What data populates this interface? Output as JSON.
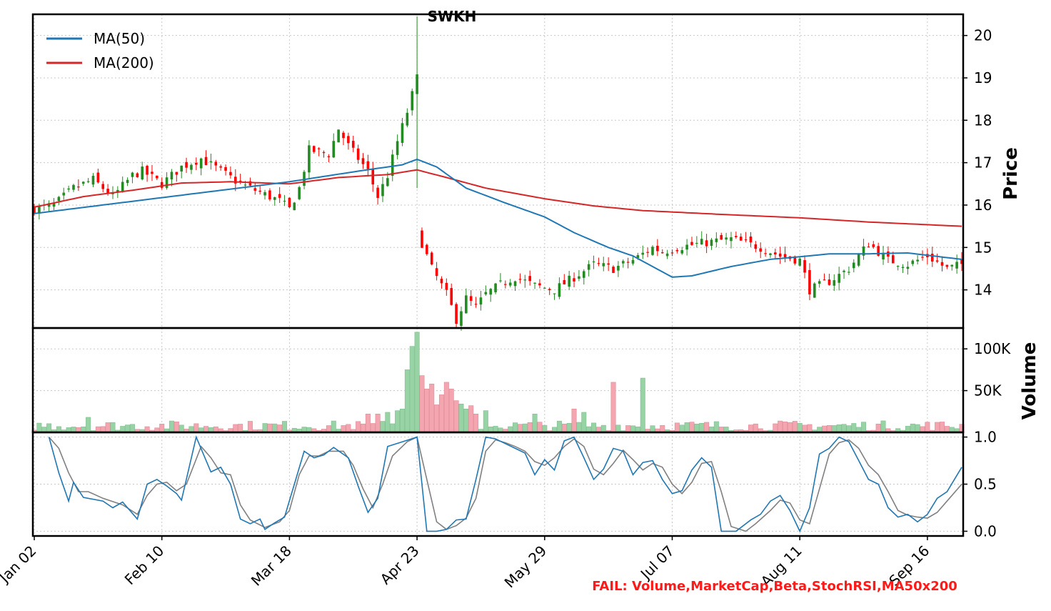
{
  "chart_data": {
    "type": "candlestick",
    "title": "SWKH",
    "x_tick_labels": [
      "Jan 02",
      "Feb 10",
      "Mar 18",
      "Apr 23",
      "May 29",
      "Jul 07",
      "Aug 11",
      "Sep 16"
    ],
    "x_tick_index": [
      0,
      26,
      52,
      78,
      104,
      130,
      156,
      182
    ],
    "n_days": 190,
    "price_panel": {
      "ylabel": "Price",
      "ylim": [
        13.1,
        20.5
      ],
      "y_ticks": [
        14,
        15,
        16,
        17,
        18,
        19,
        20
      ],
      "legend": [
        {
          "label": "MA(50)",
          "color": "#1f77b4"
        },
        {
          "label": "MA(200)",
          "color": "#d62728"
        }
      ],
      "close_anchors": [
        [
          0,
          15.9
        ],
        [
          4,
          16.0
        ],
        [
          8,
          16.4
        ],
        [
          12,
          16.6
        ],
        [
          16,
          16.2
        ],
        [
          20,
          16.7
        ],
        [
          22,
          16.8
        ],
        [
          26,
          16.5
        ],
        [
          30,
          16.9
        ],
        [
          34,
          17.1
        ],
        [
          38,
          16.8
        ],
        [
          42,
          16.5
        ],
        [
          46,
          16.3
        ],
        [
          50,
          16.1
        ],
        [
          52,
          15.9
        ],
        [
          54,
          16.4
        ],
        [
          56,
          17.3
        ],
        [
          60,
          17.2
        ],
        [
          62,
          17.8
        ],
        [
          64,
          17.4
        ],
        [
          68,
          16.8
        ],
        [
          70,
          16.2
        ],
        [
          72,
          16.7
        ],
        [
          74,
          17.5
        ],
        [
          76,
          18.2
        ],
        [
          78,
          19.0
        ],
        [
          79,
          15.1
        ],
        [
          81,
          14.5
        ],
        [
          84,
          13.9
        ],
        [
          86,
          13.3
        ],
        [
          88,
          13.8
        ],
        [
          90,
          13.6
        ],
        [
          92,
          13.9
        ],
        [
          96,
          14.2
        ],
        [
          98,
          14.3
        ],
        [
          102,
          14.1
        ],
        [
          106,
          14.0
        ],
        [
          110,
          14.3
        ],
        [
          114,
          14.6
        ],
        [
          118,
          14.5
        ],
        [
          122,
          14.7
        ],
        [
          126,
          15.0
        ],
        [
          128,
          14.9
        ],
        [
          131,
          15.0
        ],
        [
          136,
          15.1
        ],
        [
          142,
          15.2
        ],
        [
          148,
          15.0
        ],
        [
          152,
          14.8
        ],
        [
          156,
          14.7
        ],
        [
          158,
          14.0
        ],
        [
          162,
          14.2
        ],
        [
          166,
          14.5
        ],
        [
          170,
          15.1
        ],
        [
          174,
          14.7
        ],
        [
          178,
          14.6
        ],
        [
          182,
          14.8
        ],
        [
          186,
          14.5
        ],
        [
          189,
          14.6
        ]
      ],
      "ma50": [
        [
          0,
          15.8
        ],
        [
          52,
          16.55
        ],
        [
          66,
          16.8
        ],
        [
          75,
          16.95
        ],
        [
          78,
          17.08
        ],
        [
          82,
          16.9
        ],
        [
          88,
          16.4
        ],
        [
          96,
          16.05
        ],
        [
          104,
          15.72
        ],
        [
          110,
          15.35
        ],
        [
          117,
          15.0
        ],
        [
          122,
          14.8
        ],
        [
          130,
          14.3
        ],
        [
          134,
          14.33
        ],
        [
          142,
          14.55
        ],
        [
          150,
          14.72
        ],
        [
          156,
          14.78
        ],
        [
          162,
          14.85
        ],
        [
          170,
          14.85
        ],
        [
          178,
          14.87
        ],
        [
          189,
          14.72
        ]
      ],
      "ma200": [
        [
          0,
          15.95
        ],
        [
          10,
          16.2
        ],
        [
          20,
          16.35
        ],
        [
          30,
          16.52
        ],
        [
          40,
          16.55
        ],
        [
          52,
          16.5
        ],
        [
          62,
          16.65
        ],
        [
          72,
          16.72
        ],
        [
          78,
          16.83
        ],
        [
          84,
          16.65
        ],
        [
          92,
          16.4
        ],
        [
          104,
          16.15
        ],
        [
          114,
          15.98
        ],
        [
          124,
          15.87
        ],
        [
          140,
          15.78
        ],
        [
          156,
          15.7
        ],
        [
          170,
          15.6
        ],
        [
          189,
          15.5
        ]
      ]
    },
    "volume_panel": {
      "ylabel": "Volume",
      "ylim": [
        0,
        125000
      ],
      "y_ticks": [
        50000,
        100000
      ],
      "y_tick_labels": [
        "50K",
        "100K"
      ],
      "highlights": [
        [
          78,
          120000
        ],
        [
          77,
          103000
        ],
        [
          76,
          75000
        ],
        [
          79,
          68000
        ],
        [
          80,
          52000
        ],
        [
          81,
          58000
        ],
        [
          82,
          33000
        ],
        [
          83,
          45000
        ],
        [
          84,
          60000
        ],
        [
          85,
          52000
        ],
        [
          86,
          38000
        ],
        [
          87,
          34000
        ],
        [
          88,
          28000
        ],
        [
          89,
          32000
        ],
        [
          90,
          22000
        ],
        [
          92,
          26000
        ],
        [
          118,
          60000
        ],
        [
          124,
          65000
        ],
        [
          11,
          18000
        ],
        [
          74,
          26000
        ],
        [
          75,
          28000
        ],
        [
          72,
          24000
        ],
        [
          70,
          22000
        ],
        [
          68,
          22000
        ],
        [
          102,
          22000
        ],
        [
          110,
          28000
        ],
        [
          112,
          24000
        ]
      ]
    },
    "stoch_panel": {
      "ylim": [
        -0.05,
        1.05
      ],
      "y_ticks": [
        0.0,
        0.5,
        1.0
      ],
      "y_tick_labels": [
        "0.0",
        "0.5",
        "1.0"
      ],
      "k_color": "#1f77b4",
      "d_color": "#808080",
      "k": [
        [
          3,
          1.0
        ],
        [
          5,
          0.62
        ],
        [
          7,
          0.32
        ],
        [
          8,
          0.52
        ],
        [
          10,
          0.36
        ],
        [
          14,
          0.32
        ],
        [
          16,
          0.25
        ],
        [
          18,
          0.31
        ],
        [
          21,
          0.13
        ],
        [
          23,
          0.5
        ],
        [
          25,
          0.55
        ],
        [
          27,
          0.48
        ],
        [
          29,
          0.4
        ],
        [
          30,
          0.33
        ],
        [
          33,
          1.0
        ],
        [
          36,
          0.63
        ],
        [
          38,
          0.68
        ],
        [
          40,
          0.5
        ],
        [
          42,
          0.13
        ],
        [
          44,
          0.08
        ],
        [
          46,
          0.13
        ],
        [
          47,
          0.02
        ],
        [
          49,
          0.09
        ],
        [
          51,
          0.15
        ],
        [
          53,
          0.5
        ],
        [
          55,
          0.85
        ],
        [
          57,
          0.78
        ],
        [
          59,
          0.81
        ],
        [
          61,
          0.89
        ],
        [
          64,
          0.78
        ],
        [
          66,
          0.48
        ],
        [
          68,
          0.2
        ],
        [
          70,
          0.35
        ],
        [
          72,
          0.9
        ],
        [
          75,
          0.95
        ],
        [
          78,
          1.0
        ],
        [
          80,
          0.0
        ],
        [
          82,
          0.0
        ],
        [
          84,
          0.02
        ],
        [
          86,
          0.12
        ],
        [
          88,
          0.13
        ],
        [
          90,
          0.55
        ],
        [
          92,
          1.0
        ],
        [
          94,
          0.98
        ],
        [
          96,
          0.93
        ],
        [
          98,
          0.88
        ],
        [
          100,
          0.83
        ],
        [
          102,
          0.6
        ],
        [
          104,
          0.76
        ],
        [
          106,
          0.65
        ],
        [
          108,
          0.96
        ],
        [
          110,
          1.0
        ],
        [
          112,
          0.78
        ],
        [
          114,
          0.55
        ],
        [
          116,
          0.66
        ],
        [
          118,
          0.88
        ],
        [
          120,
          0.85
        ],
        [
          122,
          0.6
        ],
        [
          124,
          0.73
        ],
        [
          126,
          0.75
        ],
        [
          128,
          0.55
        ],
        [
          130,
          0.4
        ],
        [
          132,
          0.43
        ],
        [
          134,
          0.65
        ],
        [
          136,
          0.78
        ],
        [
          138,
          0.68
        ],
        [
          140,
          0.0
        ],
        [
          143,
          0.0
        ],
        [
          146,
          0.12
        ],
        [
          148,
          0.18
        ],
        [
          150,
          0.32
        ],
        [
          152,
          0.38
        ],
        [
          154,
          0.22
        ],
        [
          156,
          0.0
        ],
        [
          158,
          0.25
        ],
        [
          160,
          0.82
        ],
        [
          162,
          0.88
        ],
        [
          164,
          1.0
        ],
        [
          166,
          0.95
        ],
        [
          168,
          0.75
        ],
        [
          170,
          0.55
        ],
        [
          172,
          0.5
        ],
        [
          174,
          0.25
        ],
        [
          176,
          0.15
        ],
        [
          178,
          0.18
        ],
        [
          180,
          0.1
        ],
        [
          182,
          0.18
        ],
        [
          184,
          0.35
        ],
        [
          186,
          0.42
        ],
        [
          189,
          0.68
        ]
      ],
      "d": [
        [
          3,
          1.0
        ],
        [
          5,
          0.88
        ],
        [
          7,
          0.62
        ],
        [
          9,
          0.42
        ],
        [
          11,
          0.42
        ],
        [
          14,
          0.35
        ],
        [
          18,
          0.28
        ],
        [
          21,
          0.18
        ],
        [
          23,
          0.38
        ],
        [
          25,
          0.5
        ],
        [
          27,
          0.52
        ],
        [
          29,
          0.43
        ],
        [
          31,
          0.5
        ],
        [
          34,
          0.9
        ],
        [
          36,
          0.78
        ],
        [
          38,
          0.62
        ],
        [
          40,
          0.6
        ],
        [
          42,
          0.28
        ],
        [
          44,
          0.12
        ],
        [
          47,
          0.04
        ],
        [
          50,
          0.1
        ],
        [
          52,
          0.22
        ],
        [
          54,
          0.6
        ],
        [
          56,
          0.8
        ],
        [
          58,
          0.8
        ],
        [
          60,
          0.85
        ],
        [
          63,
          0.85
        ],
        [
          65,
          0.7
        ],
        [
          67,
          0.45
        ],
        [
          69,
          0.25
        ],
        [
          71,
          0.5
        ],
        [
          73,
          0.8
        ],
        [
          76,
          0.95
        ],
        [
          78,
          1.0
        ],
        [
          80,
          0.55
        ],
        [
          82,
          0.1
        ],
        [
          84,
          0.02
        ],
        [
          86,
          0.06
        ],
        [
          88,
          0.14
        ],
        [
          90,
          0.35
        ],
        [
          92,
          0.85
        ],
        [
          94,
          0.97
        ],
        [
          96,
          0.94
        ],
        [
          98,
          0.9
        ],
        [
          100,
          0.85
        ],
        [
          102,
          0.74
        ],
        [
          104,
          0.7
        ],
        [
          106,
          0.78
        ],
        [
          108,
          0.9
        ],
        [
          110,
          0.98
        ],
        [
          112,
          0.9
        ],
        [
          114,
          0.66
        ],
        [
          116,
          0.6
        ],
        [
          118,
          0.72
        ],
        [
          120,
          0.86
        ],
        [
          122,
          0.76
        ],
        [
          124,
          0.65
        ],
        [
          126,
          0.72
        ],
        [
          128,
          0.68
        ],
        [
          130,
          0.5
        ],
        [
          132,
          0.4
        ],
        [
          134,
          0.52
        ],
        [
          136,
          0.72
        ],
        [
          138,
          0.74
        ],
        [
          140,
          0.42
        ],
        [
          142,
          0.05
        ],
        [
          145,
          0.0
        ],
        [
          147,
          0.08
        ],
        [
          150,
          0.22
        ],
        [
          152,
          0.33
        ],
        [
          154,
          0.3
        ],
        [
          156,
          0.12
        ],
        [
          158,
          0.08
        ],
        [
          160,
          0.45
        ],
        [
          162,
          0.82
        ],
        [
          164,
          0.94
        ],
        [
          166,
          0.97
        ],
        [
          168,
          0.88
        ],
        [
          170,
          0.7
        ],
        [
          172,
          0.6
        ],
        [
          174,
          0.42
        ],
        [
          176,
          0.22
        ],
        [
          178,
          0.17
        ],
        [
          180,
          0.15
        ],
        [
          182,
          0.14
        ],
        [
          184,
          0.2
        ],
        [
          186,
          0.32
        ],
        [
          189,
          0.5
        ]
      ]
    },
    "footer_note": "FAIL: Volume,MarketCap,Beta,StochRSI,MA50x200",
    "footer_color": "#ff1a1a",
    "up_color": "#228b22",
    "down_color": "#ff0000",
    "vol_up_color": "#98d3a6",
    "vol_down_color": "#f4a6b0",
    "grid": true
  }
}
